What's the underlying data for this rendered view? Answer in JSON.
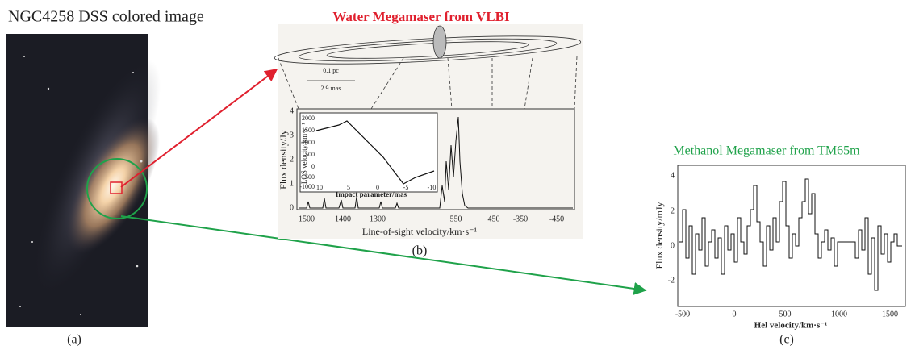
{
  "panel_a": {
    "title": "NGC4258 DSS colored image",
    "label": "(a)"
  },
  "panel_b": {
    "title": "Water Megamaser from VLBI",
    "scale_pc": "0.1 pc",
    "scale_mas": "2.9 mas",
    "y_label": "Flux density/Jy",
    "yticks": [
      "0",
      "1",
      "2",
      "3",
      "4"
    ],
    "xticks": [
      "1500",
      "1400",
      "1300",
      "550",
      "450",
      "-350",
      "-450"
    ],
    "x_label": "Line-of-sight velocity/km·s⁻¹",
    "inset": {
      "y_label": "LOS velocity/km·s⁻¹",
      "yticks": [
        "2000",
        "1500",
        "1000",
        "500",
        "0",
        "-500",
        "-1000"
      ],
      "xticks": [
        "10",
        "5",
        "0",
        "-5",
        "-10"
      ],
      "x_label": "Impact parameter/mas"
    },
    "label": "(b)"
  },
  "panel_c": {
    "title": "Methanol Megamaser from TM65m",
    "y_label": "Flux density/mJy",
    "yticks": [
      "4",
      "2",
      "0",
      "-2"
    ],
    "xticks": [
      "-500",
      "0",
      "500",
      "1000",
      "1500"
    ],
    "x_label": "Hel velocity/km·s⁻¹",
    "label": "(c)"
  }
}
